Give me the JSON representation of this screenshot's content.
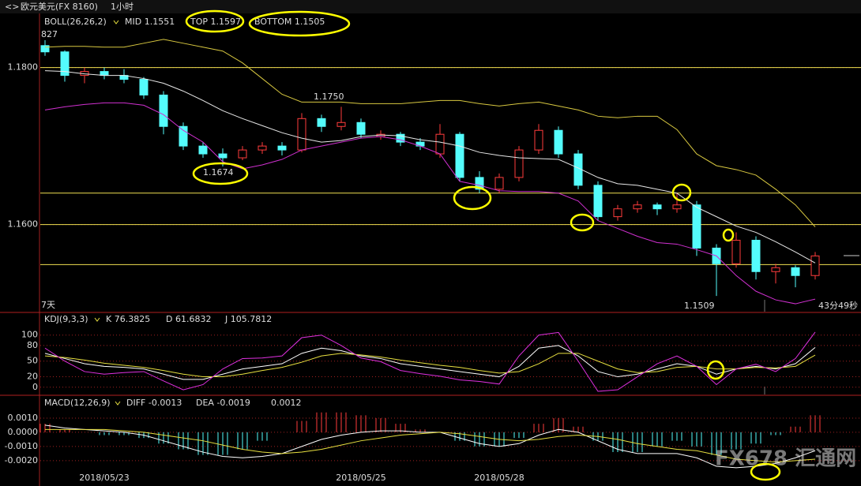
{
  "header": {
    "symbol": "欧元美元(FX 8160)",
    "period": "1小时"
  },
  "watermark": "FX678 汇通网",
  "chart_data": [
    {
      "type": "candlestick",
      "title": "BOLL(26,26,2)",
      "categories": [
        null,
        null,
        null,
        "2018/05/23",
        null,
        null,
        null,
        null,
        null,
        null,
        null,
        null,
        null,
        null,
        null,
        null,
        "2018/05/25",
        null,
        null,
        null,
        null,
        null,
        null,
        "2018/05/28",
        null,
        null,
        null,
        null,
        null,
        null,
        null,
        null,
        null,
        null,
        null,
        null,
        null,
        null,
        null,
        null
      ],
      "open": [
        1.1828,
        1.182,
        1.179,
        1.1795,
        1.179,
        1.1785,
        1.1765,
        1.1725,
        1.17,
        1.169,
        1.1685,
        1.1695,
        1.17,
        1.1695,
        1.1735,
        1.1725,
        1.173,
        1.1712,
        1.1715,
        1.1705,
        1.169,
        1.1715,
        1.166,
        1.1645,
        1.166,
        1.1695,
        1.172,
        1.169,
        1.165,
        1.161,
        1.162,
        1.1625,
        1.162,
        1.1625,
        1.157,
        1.155,
        1.158,
        1.154,
        1.1545,
        1.1535
      ],
      "high": [
        1.1835,
        1.1822,
        1.18,
        1.18,
        1.1798,
        1.1788,
        1.177,
        1.173,
        1.1705,
        1.1697,
        1.17,
        1.1705,
        1.1705,
        1.1742,
        1.174,
        1.175,
        1.1735,
        1.172,
        1.1718,
        1.171,
        1.1728,
        1.1718,
        1.1668,
        1.1665,
        1.17,
        1.1728,
        1.1725,
        1.1695,
        1.1655,
        1.1625,
        1.163,
        1.1628,
        1.164,
        1.163,
        1.1575,
        1.159,
        1.1585,
        1.155,
        1.1548,
        1.1565
      ],
      "low": [
        1.1815,
        1.1782,
        1.178,
        1.1785,
        1.178,
        1.176,
        1.1715,
        1.1695,
        1.1685,
        1.1674,
        1.1682,
        1.169,
        1.1688,
        1.1692,
        1.1718,
        1.172,
        1.171,
        1.1708,
        1.17,
        1.1695,
        1.1685,
        1.1655,
        1.164,
        1.164,
        1.1655,
        1.169,
        1.1685,
        1.1645,
        1.1605,
        1.1605,
        1.1615,
        1.1612,
        1.1615,
        1.156,
        1.1509,
        1.1545,
        1.153,
        1.1525,
        1.152,
        1.153
      ],
      "close": [
        1.182,
        1.179,
        1.1795,
        1.179,
        1.1785,
        1.1765,
        1.1725,
        1.17,
        1.169,
        1.1685,
        1.1695,
        1.17,
        1.1695,
        1.1735,
        1.1725,
        1.173,
        1.1715,
        1.1715,
        1.1705,
        1.17,
        1.1715,
        1.166,
        1.1645,
        1.166,
        1.1695,
        1.172,
        1.169,
        1.165,
        1.161,
        1.162,
        1.1625,
        1.162,
        1.1625,
        1.157,
        1.155,
        1.158,
        1.154,
        1.1545,
        1.1535,
        1.156
      ],
      "up_color": "#ff3c3c",
      "down_color": "#54fcfc",
      "series": [
        {
          "name": "MID 1.1551",
          "color": "#e8e8e8",
          "values": [
            1.1796,
            1.1795,
            1.1792,
            1.179,
            1.179,
            1.1786,
            1.178,
            1.177,
            1.1758,
            1.1745,
            1.1735,
            1.1726,
            1.1717,
            1.171,
            1.1705,
            1.1707,
            1.1712,
            1.1714,
            1.1713,
            1.1708,
            1.1705,
            1.17,
            1.1692,
            1.1688,
            1.1685,
            1.1684,
            1.1683,
            1.1672,
            1.166,
            1.1652,
            1.165,
            1.1645,
            1.164,
            1.1622,
            1.161,
            1.1598,
            1.159,
            1.1578,
            1.1565,
            1.1551
          ]
        },
        {
          "name": "TOP 1.1597",
          "color": "#d8c840",
          "values": [
            1.1826,
            1.1827,
            1.1827,
            1.1826,
            1.1826,
            1.1831,
            1.1836,
            1.1831,
            1.1826,
            1.1821,
            1.1806,
            1.1786,
            1.1766,
            1.1756,
            1.1756,
            1.1756,
            1.1754,
            1.1754,
            1.1754,
            1.1756,
            1.1758,
            1.1758,
            1.1754,
            1.1751,
            1.1754,
            1.1756,
            1.1751,
            1.1746,
            1.1738,
            1.1736,
            1.1738,
            1.1738,
            1.1721,
            1.169,
            1.1675,
            1.167,
            1.1663,
            1.1645,
            1.1625,
            1.1597
          ]
        },
        {
          "name": "BOTTOM 1.1505",
          "color": "#d030d0",
          "values": [
            1.1746,
            1.175,
            1.1753,
            1.1755,
            1.1755,
            1.1752,
            1.174,
            1.172,
            1.1705,
            1.168,
            1.1671,
            1.1676,
            1.1683,
            1.1695,
            1.17,
            1.1705,
            1.171,
            1.1712,
            1.1708,
            1.17,
            1.169,
            1.1655,
            1.165,
            1.1643,
            1.1642,
            1.1642,
            1.164,
            1.163,
            1.1605,
            1.1595,
            1.1585,
            1.1577,
            1.1575,
            1.1568,
            1.156,
            1.1535,
            1.1515,
            1.1504,
            1.1499,
            1.1505
          ]
        }
      ],
      "level_lines": [
        1.18,
        1.164,
        1.16,
        1.1549
      ],
      "level_color": "#f0e050",
      "ylim": [
        1.1489,
        1.1868
      ],
      "yticks": [
        {
          "value": 1.16,
          "label": "1.1600"
        },
        {
          "value": 1.18,
          "label": "1.1800"
        }
      ],
      "annotations": [
        "827",
        "1.1750",
        "1.1674",
        "1.1509",
        "7天",
        "43分49秒"
      ]
    },
    {
      "type": "line",
      "title": "KDJ(9,3,3)",
      "series": [
        {
          "name": "K 76.3825",
          "color": "#ffffff",
          "values": [
            65,
            55,
            45,
            40,
            38,
            35,
            25,
            15,
            15,
            25,
            35,
            40,
            45,
            65,
            75,
            70,
            60,
            55,
            45,
            40,
            35,
            30,
            25,
            20,
            40,
            75,
            80,
            60,
            30,
            20,
            25,
            35,
            45,
            40,
            25,
            35,
            40,
            35,
            45,
            76.3825
          ]
        },
        {
          "name": "D 61.6832",
          "color": "#e8e040",
          "values": [
            60,
            57,
            52,
            46,
            42,
            38,
            32,
            25,
            20,
            20,
            25,
            32,
            38,
            48,
            60,
            65,
            62,
            58,
            52,
            47,
            42,
            38,
            32,
            27,
            30,
            45,
            65,
            65,
            50,
            35,
            28,
            30,
            38,
            40,
            35,
            35,
            38,
            37,
            40,
            61.6832
          ]
        },
        {
          "name": "J 105.7812",
          "color": "#e030e0",
          "values": [
            75,
            50,
            30,
            25,
            28,
            30,
            12,
            -5,
            5,
            35,
            55,
            56,
            60,
            95,
            100,
            80,
            56,
            49,
            32,
            26,
            21,
            14,
            11,
            6,
            60,
            100,
            105,
            50,
            -8,
            -5,
            20,
            45,
            60,
            40,
            5,
            35,
            44,
            30,
            55,
            105.7812
          ]
        }
      ],
      "ylim": [
        -14,
        142
      ],
      "yticks": [
        0,
        20,
        50,
        80,
        100
      ]
    },
    {
      "type": "macd",
      "title": "MACD(12,26,9)",
      "series": [
        {
          "name": "DIFF -0.0013",
          "color": "#ffffff",
          "values": [
            0.0005,
            0.0003,
            0.0002,
            0.0001,
            0,
            -0.0002,
            -0.0006,
            -0.001,
            -0.0014,
            -0.0017,
            -0.0018,
            -0.0017,
            -0.0015,
            -0.001,
            -0.0005,
            -0.0002,
            0,
            0.0001,
            0.0001,
            0,
            0,
            -0.0004,
            -0.0008,
            -0.001,
            -0.0008,
            -0.0002,
            0.0002,
            0,
            -0.0006,
            -0.0012,
            -0.0015,
            -0.0015,
            -0.0015,
            -0.0018,
            -0.0024,
            -0.0025,
            -0.0024,
            -0.0022,
            -0.0018,
            -0.0013
          ]
        },
        {
          "name": "DEA -0.0019",
          "color": "#e8e040",
          "values": [
            0.0002,
            0.0002,
            0.0002,
            0.0002,
            0.0001,
            0,
            -0.0002,
            -0.0004,
            -0.0006,
            -0.0009,
            -0.0012,
            -0.0014,
            -0.0015,
            -0.0014,
            -0.0012,
            -0.0009,
            -0.0006,
            -0.0004,
            -0.0002,
            -0.0001,
            0,
            -0.0001,
            -0.0003,
            -0.0005,
            -0.0006,
            -0.0005,
            -0.0003,
            -0.0002,
            -0.0003,
            -0.0005,
            -0.0008,
            -0.001,
            -0.0012,
            -0.0013,
            -0.0016,
            -0.0019,
            -0.002,
            -0.0021,
            -0.002,
            -0.0019
          ]
        }
      ],
      "histogram": {
        "name": "0.0012",
        "up_color": "#ff3c3c",
        "down_color": "#54fcfc",
        "values": [
          0.0006,
          0.0002,
          0,
          -0.0002,
          -0.0002,
          -0.0004,
          -0.0008,
          -0.0012,
          -0.0016,
          -0.0016,
          -0.0012,
          -0.0006,
          0,
          0.0008,
          0.0014,
          0.0014,
          0.0012,
          0.001,
          0.0006,
          0.0002,
          0,
          -0.0006,
          -0.001,
          -0.001,
          -0.0004,
          0.0006,
          0.001,
          0.0004,
          -0.0006,
          -0.0014,
          -0.0014,
          -0.001,
          -0.0006,
          -0.001,
          -0.0016,
          -0.0012,
          -0.0008,
          -0.0002,
          0.0004,
          0.0012
        ]
      },
      "ylim": [
        -0.0029,
        0.0025
      ],
      "yticks": [
        {
          "value": 0.001,
          "label": "0.0010"
        },
        {
          "value": 0,
          "label": "0.0000"
        },
        {
          "value": -0.001,
          "label": "-0.0010"
        },
        {
          "value": -0.002,
          "label": "-0.0020"
        }
      ]
    }
  ]
}
